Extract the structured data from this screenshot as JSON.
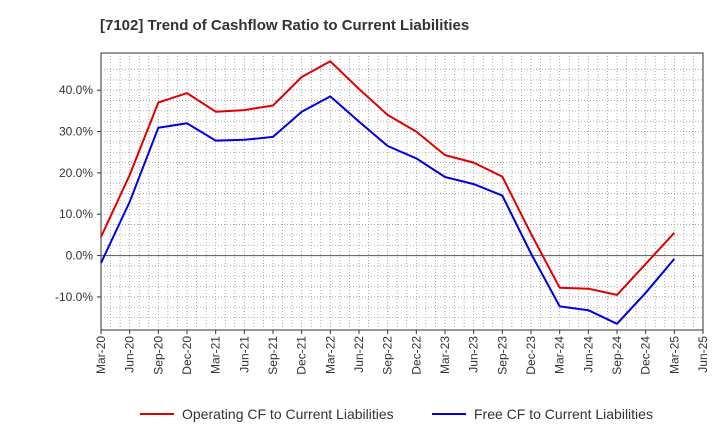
{
  "chart_data": {
    "type": "line",
    "title": "[7102]  Trend of Cashflow Ratio to Current Liabilities",
    "xlabel": "",
    "ylabel": "",
    "x": [
      "Mar-20",
      "Jun-20",
      "Sep-20",
      "Dec-20",
      "Mar-21",
      "Jun-21",
      "Sep-21",
      "Dec-21",
      "Mar-22",
      "Jun-22",
      "Sep-22",
      "Dec-22",
      "Mar-23",
      "Jun-23",
      "Sep-23",
      "Dec-23",
      "Mar-24",
      "Jun-24",
      "Sep-24",
      "Dec-24",
      "Mar-25",
      "Jun-25"
    ],
    "ylim": [
      -18,
      49
    ],
    "yticks": [
      -10,
      0,
      10,
      20,
      30,
      40
    ],
    "ytick_labels": [
      "-10.0%",
      "0.0%",
      "10.0%",
      "20.0%",
      "30.0%",
      "40.0%"
    ],
    "grid": true,
    "legend_position": "bottom",
    "series": [
      {
        "name": "Operating CF to Current Liabilities",
        "color": "#e00000",
        "values": [
          4.5,
          19.5,
          37.0,
          39.3,
          34.8,
          35.2,
          36.3,
          43.2,
          47.0,
          40.3,
          34.0,
          30.0,
          24.3,
          22.5,
          19.1,
          5.3,
          -7.8,
          -8.0,
          -9.5,
          -2.0,
          5.5,
          null
        ]
      },
      {
        "name": "Free CF to Current Liabilities",
        "color": "#0000e0",
        "values": [
          -1.8,
          13.0,
          30.9,
          32.0,
          27.8,
          28.0,
          28.7,
          34.8,
          38.5,
          32.4,
          26.5,
          23.5,
          19.0,
          17.3,
          14.5,
          0.5,
          -12.3,
          -13.2,
          -16.5,
          -9.0,
          -0.8,
          null
        ]
      }
    ]
  }
}
